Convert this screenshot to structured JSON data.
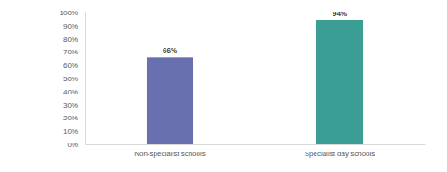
{
  "chart_data": {
    "type": "bar",
    "categories": [
      "Non-specialist schools",
      "Specialist day schools"
    ],
    "values": [
      66,
      94
    ],
    "value_labels": [
      "66%",
      "94%"
    ],
    "colors": [
      "#6870b0",
      "#3a9e94"
    ],
    "ylim": [
      0,
      100
    ],
    "yticks": [
      {
        "value": 0,
        "label": "0%"
      },
      {
        "value": 10,
        "label": "10%"
      },
      {
        "value": 20,
        "label": "20%"
      },
      {
        "value": 30,
        "label": "30%"
      },
      {
        "value": 40,
        "label": "40%"
      },
      {
        "value": 50,
        "label": "50%"
      },
      {
        "value": 60,
        "label": "60%"
      },
      {
        "value": 70,
        "label": "70%"
      },
      {
        "value": 80,
        "label": "80%"
      },
      {
        "value": 90,
        "label": "90%"
      },
      {
        "value": 100,
        "label": "100%"
      }
    ],
    "data_labels": true,
    "grid": false
  }
}
